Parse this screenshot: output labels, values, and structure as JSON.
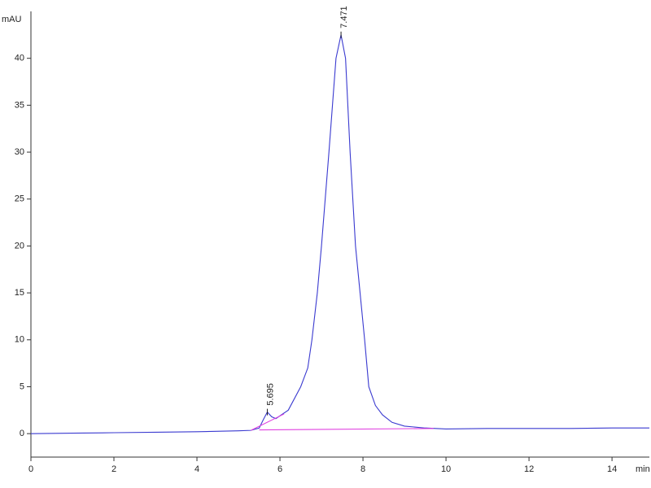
{
  "chart_data": {
    "type": "line",
    "y_label": "mAU",
    "x_label": "min",
    "xlim": [
      0,
      14.9
    ],
    "ylim": [
      -2.5,
      45
    ],
    "xticks": [
      0,
      2,
      4,
      6,
      8,
      10,
      12,
      14
    ],
    "yticks": [
      0,
      5,
      10,
      15,
      20,
      25,
      30,
      35,
      40
    ],
    "series": [
      {
        "color": "#3a3ad0",
        "x": [
          0,
          1,
          2,
          3,
          4,
          5,
          5.3,
          5.5,
          5.6,
          5.695,
          5.8,
          5.9,
          6.0,
          6.2,
          6.5,
          6.67,
          6.77,
          6.9,
          7.0,
          7.18,
          7.35,
          7.471,
          7.58,
          7.69,
          7.82,
          7.93,
          8.04,
          8.14,
          8.3,
          8.47,
          8.7,
          9.0,
          9.5,
          10,
          11,
          12,
          13,
          14,
          14.9
        ],
        "values": [
          0,
          0.05,
          0.1,
          0.15,
          0.2,
          0.3,
          0.35,
          0.6,
          1.5,
          2.3,
          1.8,
          1.6,
          1.9,
          2.5,
          5,
          7,
          10,
          15,
          20,
          30,
          40,
          42.5,
          40,
          30,
          20,
          15,
          10,
          5,
          3,
          2,
          1.2,
          0.8,
          0.6,
          0.5,
          0.55,
          0.55,
          0.55,
          0.6,
          0.6
        ]
      },
      {
        "color": "#e040e0",
        "x": [
          5.3,
          6.1
        ],
        "values": [
          0.35,
          2.1
        ]
      },
      {
        "color": "#e040e0",
        "x": [
          5.5,
          9.7
        ],
        "values": [
          0.4,
          0.55
        ]
      }
    ],
    "annotations": [
      {
        "text": "5.695",
        "x": 5.695,
        "y": 2.3
      },
      {
        "text": "7.471",
        "x": 7.471,
        "y": 42.5
      }
    ]
  }
}
